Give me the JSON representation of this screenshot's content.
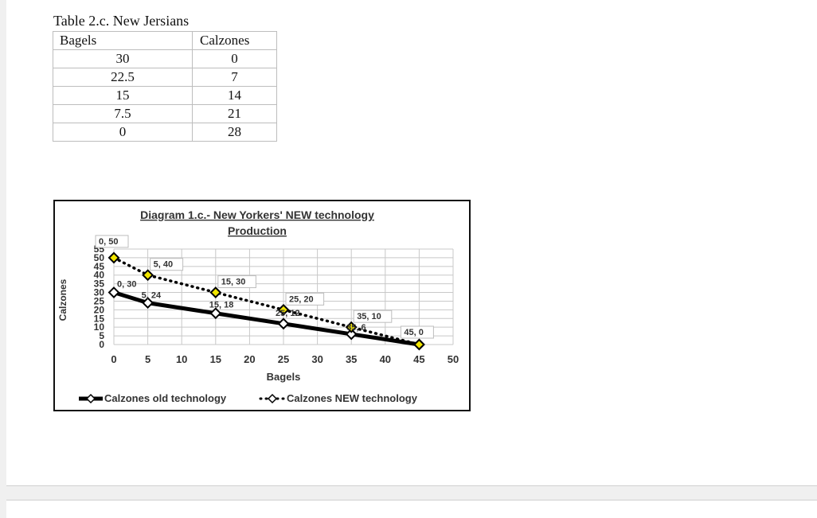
{
  "table": {
    "caption": "Table 2.c. New Jersians",
    "headers": [
      "Bagels",
      "Calzones"
    ],
    "rows": [
      [
        "30",
        "0"
      ],
      [
        "22.5",
        "7"
      ],
      [
        "15",
        "14"
      ],
      [
        "7.5",
        "21"
      ],
      [
        "0",
        "28"
      ]
    ]
  },
  "chart_data": {
    "type": "line",
    "title_line1": "Diagram 1.c.- New Yorkers' NEW technology",
    "title_line2": "Production",
    "xlabel": "Bagels",
    "ylabel": "Calzones",
    "xlim": [
      0,
      50
    ],
    "ylim": [
      0,
      55
    ],
    "xticks": [
      "0",
      "5",
      "10",
      "15",
      "20",
      "25",
      "30",
      "35",
      "40",
      "45",
      "50"
    ],
    "yticks": [
      "0",
      "5",
      "10",
      "15",
      "20",
      "25",
      "30",
      "35",
      "40",
      "45",
      "50",
      "55"
    ],
    "grid": true,
    "legend_position": "bottom",
    "series": [
      {
        "name": "Calzones old technology",
        "style": "solid",
        "color": "#000000",
        "points": [
          {
            "x": 0,
            "y": 30,
            "label": "0, 30"
          },
          {
            "x": 5,
            "y": 24,
            "label": "5, 24"
          },
          {
            "x": 15,
            "y": 18,
            "label": "15, 18"
          },
          {
            "x": 25,
            "y": 12,
            "label": "25, 12"
          },
          {
            "x": 35,
            "y": 6,
            "label": "35, 6"
          },
          {
            "x": 45,
            "y": 0,
            "label": ""
          }
        ]
      },
      {
        "name": "Calzones NEW technology",
        "style": "dotted",
        "color": "#000000",
        "marker_color": "#f2e600",
        "points": [
          {
            "x": 0,
            "y": 50,
            "label": "0, 50"
          },
          {
            "x": 5,
            "y": 40,
            "label": "5, 40"
          },
          {
            "x": 15,
            "y": 30,
            "label": "15, 30"
          },
          {
            "x": 25,
            "y": 20,
            "label": "25, 20"
          },
          {
            "x": 35,
            "y": 10,
            "label": "35, 10"
          },
          {
            "x": 45,
            "y": 0,
            "label": "45, 0"
          }
        ]
      }
    ]
  }
}
